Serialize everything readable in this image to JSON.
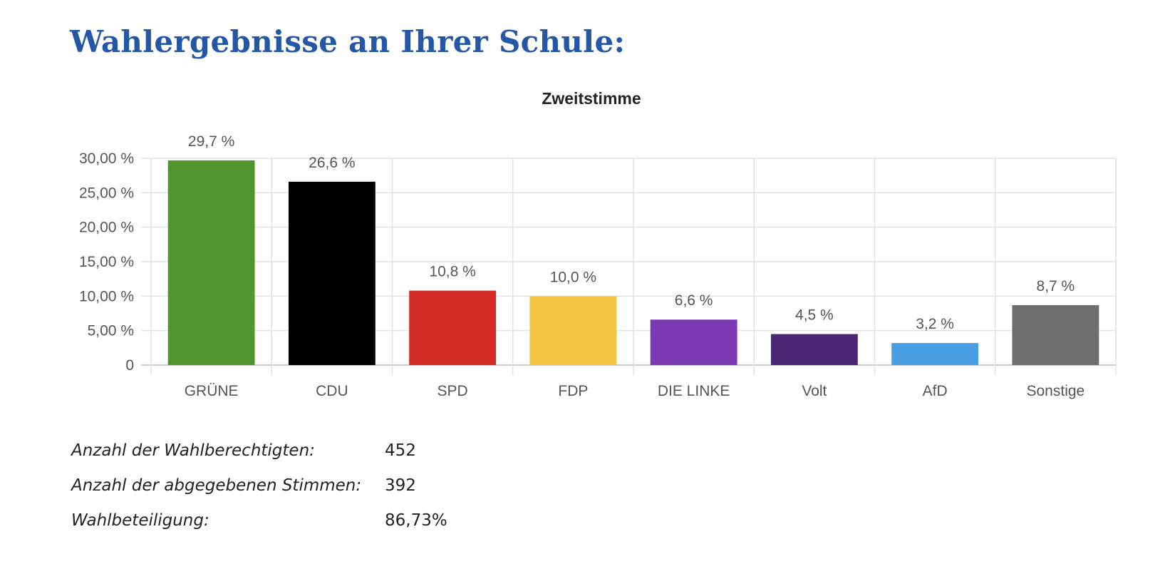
{
  "page": {
    "title": "Wahlergebnisse an Ihrer Schule:"
  },
  "chart_data": {
    "type": "bar",
    "title": "Zweitstimme",
    "xlabel": "",
    "ylabel": "",
    "categories": [
      "GRÜNE",
      "CDU",
      "SPD",
      "FDP",
      "DIE LINKE",
      "Volt",
      "AfD",
      "Sonstige"
    ],
    "values": [
      29.7,
      26.6,
      10.8,
      10.0,
      6.6,
      4.5,
      3.2,
      8.7
    ],
    "data_labels": [
      "29,7 %",
      "26,6 %",
      "10,8 %",
      "10,0 %",
      "6,6 %",
      "4,5 %",
      "3,2 %",
      "8,7 %"
    ],
    "colors": [
      "#52952f",
      "#000000",
      "#d52b27",
      "#f5c443",
      "#7d39b4",
      "#4b2674",
      "#4a9fe3",
      "#6e6e6e"
    ],
    "ylim": [
      0,
      30
    ],
    "yticks": [
      0,
      5,
      10,
      15,
      20,
      25,
      30
    ],
    "ytick_labels": [
      "0",
      "5,00 %",
      "10,00 %",
      "15,00 %",
      "20,00 %",
      "25,00 %",
      "30,00 %"
    ],
    "grid": true,
    "legend": "none"
  },
  "stats": [
    {
      "label": "Anzahl der Wahlberechtigten:",
      "value": "452"
    },
    {
      "label": "Anzahl der abgegebenen Stimmen:",
      "value": "392"
    },
    {
      "label": "Wahlbeteiligung:",
      "value": "86,73%"
    }
  ]
}
